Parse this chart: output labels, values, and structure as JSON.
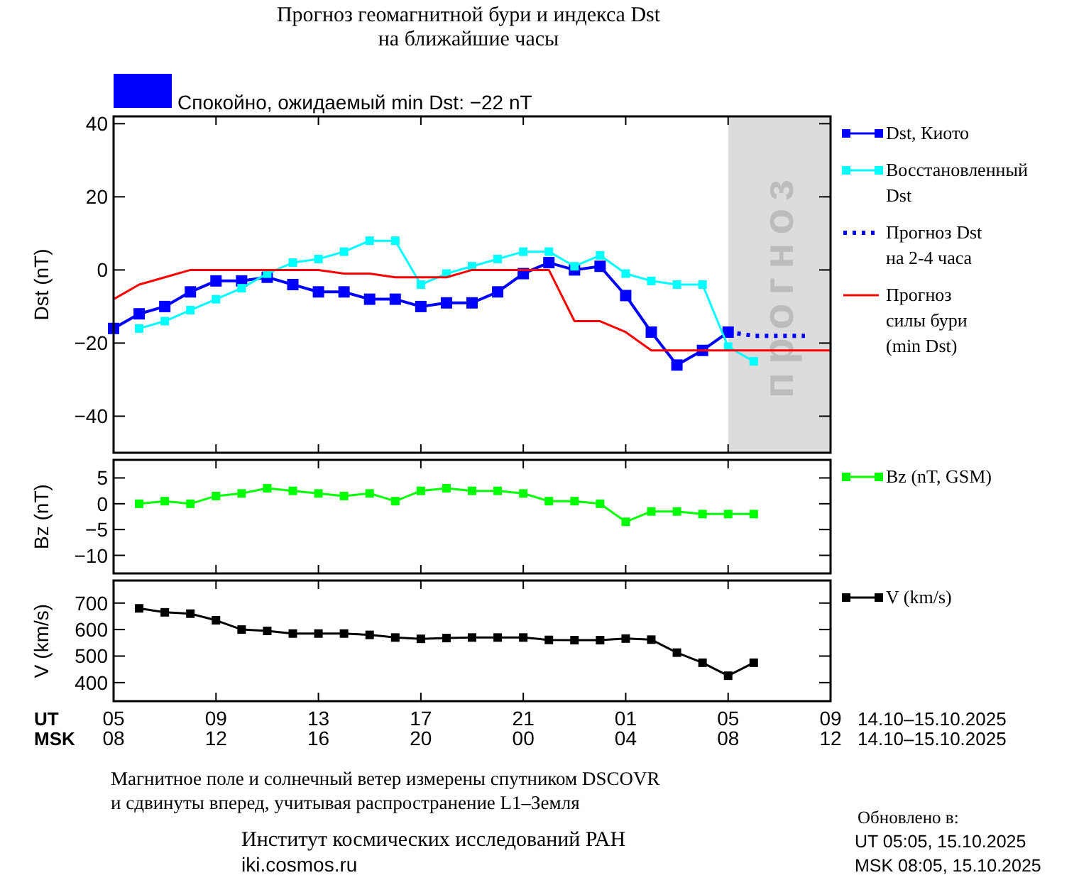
{
  "chart_data": [
    {
      "type": "line",
      "title": "Прогноз геомагнитной бури и индекса Dst\nна ближайшие часы",
      "ylabel": "Dst (nT)",
      "xlim": [
        "2025-10-14T05:00",
        "2025-10-15T09:00"
      ],
      "xticks": [
        {
          "value": "2025-10-14T05:00",
          "label": null
        },
        {
          "value": "2025-10-14T09:00",
          "label": null
        },
        {
          "value": "2025-10-14T13:00",
          "label": null
        },
        {
          "value": "2025-10-14T17:00",
          "label": null
        },
        {
          "value": "2025-10-14T21:00",
          "label": null
        },
        {
          "value": "2025-10-15T01:00",
          "label": null
        },
        {
          "value": "2025-10-15T05:00",
          "label": null
        },
        {
          "value": "2025-10-15T09:00",
          "label": null
        }
      ],
      "ylim": [
        -50,
        42
      ],
      "yticks": [
        -40,
        -20,
        0,
        20,
        40
      ],
      "tick_labels": "y",
      "legend": "right",
      "grid": false,
      "series": [
        {
          "name": "Dst, Киото",
          "color": "#0000ff",
          "marker": "square",
          "line_style": "solid",
          "x": [
            "2025-10-14T05:00",
            "2025-10-14T06:00",
            "2025-10-14T07:00",
            "2025-10-14T08:00",
            "2025-10-14T09:00",
            "2025-10-14T10:00",
            "2025-10-14T11:00",
            "2025-10-14T12:00",
            "2025-10-14T13:00",
            "2025-10-14T14:00",
            "2025-10-14T15:00",
            "2025-10-14T16:00",
            "2025-10-14T17:00",
            "2025-10-14T18:00",
            "2025-10-14T19:00",
            "2025-10-14T20:00",
            "2025-10-14T21:00",
            "2025-10-14T22:00",
            "2025-10-14T23:00",
            "2025-10-15T00:00",
            "2025-10-15T01:00",
            "2025-10-15T02:00",
            "2025-10-15T03:00",
            "2025-10-15T04:00",
            "2025-10-15T05:00"
          ],
          "values": [
            -16,
            -12,
            -10,
            -6,
            -3,
            -3,
            -2,
            -4,
            -6,
            -6,
            -8,
            -8,
            -10,
            -9,
            -9,
            -6,
            -1,
            2,
            0,
            1,
            -7,
            -17,
            -26,
            -22,
            -17
          ]
        },
        {
          "name": "Восстановленный\nDst",
          "color": "#00ffff",
          "marker": "square",
          "line_style": "solid",
          "x": [
            "2025-10-14T06:00",
            "2025-10-14T07:00",
            "2025-10-14T08:00",
            "2025-10-14T09:00",
            "2025-10-14T10:00",
            "2025-10-14T11:00",
            "2025-10-14T12:00",
            "2025-10-14T13:00",
            "2025-10-14T14:00",
            "2025-10-14T15:00",
            "2025-10-14T16:00",
            "2025-10-14T17:00",
            "2025-10-14T18:00",
            "2025-10-14T19:00",
            "2025-10-14T20:00",
            "2025-10-14T21:00",
            "2025-10-14T22:00",
            "2025-10-14T23:00",
            "2025-10-15T00:00",
            "2025-10-15T01:00",
            "2025-10-15T02:00",
            "2025-10-15T03:00",
            "2025-10-15T04:00",
            "2025-10-15T05:00",
            "2025-10-15T06:00"
          ],
          "values": [
            -16,
            -14,
            -11,
            -8,
            -5,
            -1,
            2,
            3,
            5,
            8,
            8,
            -4,
            -1,
            1,
            3,
            5,
            5,
            1,
            4,
            -1,
            -3,
            -4,
            -4,
            -21,
            -25
          ]
        },
        {
          "name": "Прогноз Dst\nна 2-4 часа",
          "color": "#0000ff",
          "marker": "none",
          "line_style": "dotted",
          "x": [
            "2025-10-15T05:00",
            "2025-10-15T06:00",
            "2025-10-15T07:00",
            "2025-10-15T08:00"
          ],
          "values": [
            -17,
            -18,
            -18,
            -18
          ]
        },
        {
          "name": "Прогноз\nсилы бури\n(min Dst)",
          "color": "#ff0000",
          "marker": "none",
          "line_style": "solid",
          "x": [
            "2025-10-14T05:00",
            "2025-10-14T06:00",
            "2025-10-14T07:00",
            "2025-10-14T08:00",
            "2025-10-14T09:00",
            "2025-10-14T10:00",
            "2025-10-14T11:00",
            "2025-10-14T12:00",
            "2025-10-14T13:00",
            "2025-10-14T14:00",
            "2025-10-14T15:00",
            "2025-10-14T16:00",
            "2025-10-14T17:00",
            "2025-10-14T18:00",
            "2025-10-14T19:00",
            "2025-10-14T20:00",
            "2025-10-14T21:00",
            "2025-10-14T22:00",
            "2025-10-14T23:00",
            "2025-10-15T00:00",
            "2025-10-15T01:00",
            "2025-10-15T02:00",
            "2025-10-15T03:00",
            "2025-10-15T04:00",
            "2025-10-15T05:00",
            "2025-10-15T06:00",
            "2025-10-15T07:00",
            "2025-10-15T08:00",
            "2025-10-15T09:00"
          ],
          "values": [
            -8,
            -4,
            -2,
            0,
            0,
            0,
            0,
            0,
            0,
            -1,
            -1,
            -2,
            -2,
            -2,
            0,
            0,
            0,
            0,
            -14,
            -14,
            -17,
            -22,
            -22,
            -22,
            -22,
            -22,
            -22,
            -22,
            -22
          ]
        }
      ],
      "bands": [
        {
          "axis": "x",
          "from": "2025-10-15T05:00",
          "to": "2025-10-15T09:00",
          "label": "прогноз",
          "color": "#dcdcdc"
        }
      ],
      "annotations": [
        "Спокойно, ожидаемый min Dst: −22 nT",
        "Магнитное поле и солнечный ветер измерены спутником DSCOVR",
        "и сдвинуты вперед, учитывая распространение L1–Земля",
        "Институт космических исследований РАН",
        "iki.cosmos.ru",
        "Обновлено в:",
        "UT  05:05, 15.10.2025",
        "MSK 08:05, 15.10.2025"
      ]
    },
    {
      "type": "line",
      "ylabel": "Bz (nT)",
      "xlim": [
        "2025-10-14T05:00",
        "2025-10-15T09:00"
      ],
      "xticks": [
        {
          "value": "2025-10-14T05:00",
          "label": null
        },
        {
          "value": "2025-10-14T09:00",
          "label": null
        },
        {
          "value": "2025-10-14T13:00",
          "label": null
        },
        {
          "value": "2025-10-14T17:00",
          "label": null
        },
        {
          "value": "2025-10-14T21:00",
          "label": null
        },
        {
          "value": "2025-10-15T01:00",
          "label": null
        },
        {
          "value": "2025-10-15T05:00",
          "label": null
        },
        {
          "value": "2025-10-15T09:00",
          "label": null
        }
      ],
      "ylim": [
        -13.5,
        8.5
      ],
      "yticks": [
        -10,
        -5,
        0,
        5
      ],
      "tick_labels": "y",
      "legend": "right",
      "grid": false,
      "x": [
        "2025-10-14T06:00",
        "2025-10-14T07:00",
        "2025-10-14T08:00",
        "2025-10-14T09:00",
        "2025-10-14T10:00",
        "2025-10-14T11:00",
        "2025-10-14T12:00",
        "2025-10-14T13:00",
        "2025-10-14T14:00",
        "2025-10-14T15:00",
        "2025-10-14T16:00",
        "2025-10-14T17:00",
        "2025-10-14T18:00",
        "2025-10-14T19:00",
        "2025-10-14T20:00",
        "2025-10-14T21:00",
        "2025-10-14T22:00",
        "2025-10-14T23:00",
        "2025-10-15T00:00",
        "2025-10-15T01:00",
        "2025-10-15T02:00",
        "2025-10-15T03:00",
        "2025-10-15T04:00",
        "2025-10-15T05:00",
        "2025-10-15T06:00"
      ],
      "series": [
        {
          "name": "Bz (nT, GSM)",
          "color": "#00ff00",
          "marker": "square",
          "line_style": "solid",
          "values": [
            0,
            0.5,
            0,
            1.5,
            2,
            3,
            2.5,
            2,
            1.5,
            2,
            0.5,
            2.5,
            3,
            2.5,
            2.5,
            2,
            0.5,
            0.5,
            0,
            -3.5,
            -1.5,
            -1.5,
            -2,
            -2,
            -2
          ]
        }
      ]
    },
    {
      "type": "line",
      "ylabel": "V (km/s)",
      "xlabel": "UT",
      "x2label": "MSK",
      "xlim": [
        "2025-10-14T05:00",
        "2025-10-15T09:00"
      ],
      "xticks": [
        {
          "value": "2025-10-14T05:00",
          "label": "05"
        },
        {
          "value": "2025-10-14T09:00",
          "label": "09"
        },
        {
          "value": "2025-10-14T13:00",
          "label": "13"
        },
        {
          "value": "2025-10-14T17:00",
          "label": "17"
        },
        {
          "value": "2025-10-14T21:00",
          "label": "21"
        },
        {
          "value": "2025-10-15T01:00",
          "label": "01"
        },
        {
          "value": "2025-10-15T05:00",
          "label": "05"
        },
        {
          "value": "2025-10-15T09:00",
          "label": "09"
        }
      ],
      "x2lim": [
        "2025-10-14T08:00",
        "2025-10-15T12:00"
      ],
      "x2ticks": [
        {
          "value": "2025-10-14T08:00",
          "label": "08"
        },
        {
          "value": "2025-10-14T12:00",
          "label": "12"
        },
        {
          "value": "2025-10-14T16:00",
          "label": "16"
        },
        {
          "value": "2025-10-14T20:00",
          "label": "20"
        },
        {
          "value": "2025-10-15T00:00",
          "label": "00"
        },
        {
          "value": "2025-10-15T04:00",
          "label": "04"
        },
        {
          "value": "2025-10-15T08:00",
          "label": "08"
        },
        {
          "value": "2025-10-15T12:00",
          "label": "12"
        }
      ],
      "ylim": [
        330,
        785
      ],
      "yticks": [
        400,
        500,
        600,
        700
      ],
      "legend": "right",
      "grid": false,
      "x": [
        "2025-10-14T06:00",
        "2025-10-14T07:00",
        "2025-10-14T08:00",
        "2025-10-14T09:00",
        "2025-10-14T10:00",
        "2025-10-14T11:00",
        "2025-10-14T12:00",
        "2025-10-14T13:00",
        "2025-10-14T14:00",
        "2025-10-14T15:00",
        "2025-10-14T16:00",
        "2025-10-14T17:00",
        "2025-10-14T18:00",
        "2025-10-14T19:00",
        "2025-10-14T20:00",
        "2025-10-14T21:00",
        "2025-10-14T22:00",
        "2025-10-14T23:00",
        "2025-10-15T00:00",
        "2025-10-15T01:00",
        "2025-10-15T02:00",
        "2025-10-15T03:00",
        "2025-10-15T04:00",
        "2025-10-15T05:00",
        "2025-10-15T06:00"
      ],
      "series": [
        {
          "name": "V (km/s)",
          "color": "#000000",
          "marker": "square",
          "line_style": "solid",
          "values": [
            680,
            665,
            660,
            635,
            600,
            595,
            585,
            585,
            585,
            580,
            570,
            565,
            568,
            570,
            570,
            570,
            561,
            560,
            560,
            566,
            562,
            513,
            475,
            426,
            475
          ]
        }
      ],
      "annotations": [
        "14.10–15.10.2025",
        "14.10–15.10.2025"
      ]
    }
  ]
}
